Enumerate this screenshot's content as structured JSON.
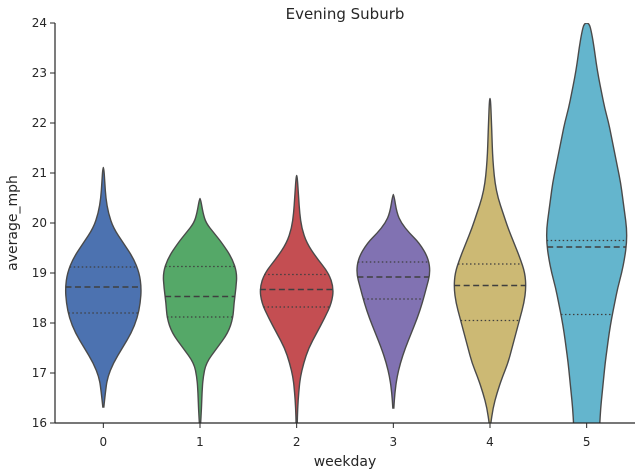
{
  "chart_data": {
    "type": "violin",
    "title": "Evening Suburb",
    "xlabel": "weekday",
    "ylabel": "average_mph",
    "ylim": [
      16,
      24
    ],
    "yticks": [
      16,
      17,
      18,
      19,
      20,
      21,
      22,
      23,
      24
    ],
    "grid": false,
    "categories": [
      "0",
      "1",
      "2",
      "3",
      "4",
      "5"
    ],
    "colors": [
      "#4c72b0",
      "#55a868",
      "#c44e52",
      "#8172b2",
      "#ccb974",
      "#64b5cd"
    ],
    "series": [
      {
        "category": "0",
        "q1": 18.2,
        "median": 18.72,
        "q3": 19.12,
        "profile": [
          [
            16.32,
            0.5
          ],
          [
            16.6,
            2
          ],
          [
            16.9,
            4
          ],
          [
            17.2,
            10
          ],
          [
            17.5,
            19
          ],
          [
            17.8,
            28
          ],
          [
            18.1,
            34
          ],
          [
            18.4,
            37
          ],
          [
            18.7,
            38
          ],
          [
            19.0,
            36
          ],
          [
            19.3,
            30
          ],
          [
            19.6,
            20
          ],
          [
            19.9,
            10
          ],
          [
            20.2,
            5
          ],
          [
            20.5,
            2.5
          ],
          [
            20.8,
            1.5
          ],
          [
            21.11,
            0.5
          ]
        ]
      },
      {
        "category": "1",
        "q1": 18.12,
        "median": 18.53,
        "q3": 19.13,
        "profile": [
          [
            15.95,
            0.5
          ],
          [
            16.3,
            1.5
          ],
          [
            16.6,
            2
          ],
          [
            16.9,
            3
          ],
          [
            17.2,
            6
          ],
          [
            17.5,
            17
          ],
          [
            17.8,
            28
          ],
          [
            18.1,
            33
          ],
          [
            18.4,
            34
          ],
          [
            18.7,
            36
          ],
          [
            19.0,
            37
          ],
          [
            19.3,
            32
          ],
          [
            19.6,
            22
          ],
          [
            19.8,
            14
          ],
          [
            20.0,
            6
          ],
          [
            20.2,
            3
          ],
          [
            20.49,
            0.5
          ]
        ]
      },
      {
        "category": "2",
        "q1": 18.32,
        "median": 18.67,
        "q3": 18.97,
        "profile": [
          [
            15.95,
            0.5
          ],
          [
            16.3,
            1
          ],
          [
            16.6,
            2
          ],
          [
            16.9,
            3.5
          ],
          [
            17.2,
            7
          ],
          [
            17.5,
            12
          ],
          [
            17.8,
            20
          ],
          [
            18.1,
            28
          ],
          [
            18.4,
            35
          ],
          [
            18.7,
            37
          ],
          [
            19.0,
            32
          ],
          [
            19.3,
            20
          ],
          [
            19.6,
            10
          ],
          [
            19.9,
            5
          ],
          [
            20.2,
            3
          ],
          [
            20.5,
            2
          ],
          [
            20.95,
            0.5
          ]
        ]
      },
      {
        "category": "3",
        "q1": 18.48,
        "median": 18.92,
        "q3": 19.22,
        "profile": [
          [
            16.3,
            0.5
          ],
          [
            16.6,
            1.5
          ],
          [
            16.9,
            3.5
          ],
          [
            17.2,
            7
          ],
          [
            17.5,
            12
          ],
          [
            17.8,
            18
          ],
          [
            18.1,
            24
          ],
          [
            18.4,
            29
          ],
          [
            18.7,
            33
          ],
          [
            19.0,
            37
          ],
          [
            19.3,
            35
          ],
          [
            19.6,
            26
          ],
          [
            19.8,
            16
          ],
          [
            20.0,
            8
          ],
          [
            20.2,
            3.5
          ],
          [
            20.57,
            0.5
          ]
        ]
      },
      {
        "category": "4",
        "q1": 18.05,
        "median": 18.75,
        "q3": 19.18,
        "profile": [
          [
            15.95,
            0.5
          ],
          [
            16.3,
            3
          ],
          [
            16.6,
            7
          ],
          [
            16.9,
            12
          ],
          [
            17.2,
            18
          ],
          [
            17.5,
            22
          ],
          [
            17.8,
            26
          ],
          [
            18.1,
            30
          ],
          [
            18.4,
            34
          ],
          [
            18.7,
            36
          ],
          [
            19.0,
            35
          ],
          [
            19.3,
            30
          ],
          [
            19.6,
            24
          ],
          [
            19.9,
            18
          ],
          [
            20.2,
            13
          ],
          [
            20.5,
            8
          ],
          [
            20.8,
            5
          ],
          [
            21.1,
            3.5
          ],
          [
            21.4,
            2.5
          ],
          [
            21.7,
            2
          ],
          [
            22.0,
            1.5
          ],
          [
            22.49,
            0.5
          ]
        ]
      },
      {
        "category": "5",
        "q1": 18.17,
        "median": 19.52,
        "q3": 19.65,
        "profile": [
          [
            15.95,
            13
          ],
          [
            16.3,
            14
          ],
          [
            16.6,
            15.5
          ],
          [
            16.9,
            17
          ],
          [
            17.2,
            18.5
          ],
          [
            17.5,
            20.5
          ],
          [
            17.8,
            22.5
          ],
          [
            18.1,
            25
          ],
          [
            18.4,
            28
          ],
          [
            18.7,
            31
          ],
          [
            19.0,
            35
          ],
          [
            19.3,
            38
          ],
          [
            19.6,
            40
          ],
          [
            19.9,
            40
          ],
          [
            20.2,
            38
          ],
          [
            20.5,
            36
          ],
          [
            20.8,
            34
          ],
          [
            21.1,
            31
          ],
          [
            21.4,
            28
          ],
          [
            21.7,
            25
          ],
          [
            22.0,
            22
          ],
          [
            22.3,
            18
          ],
          [
            22.6,
            15
          ],
          [
            22.9,
            12
          ],
          [
            23.2,
            9.5
          ],
          [
            23.5,
            7.5
          ],
          [
            23.8,
            5
          ],
          [
            24.0,
            2.5
          ]
        ]
      }
    ]
  }
}
